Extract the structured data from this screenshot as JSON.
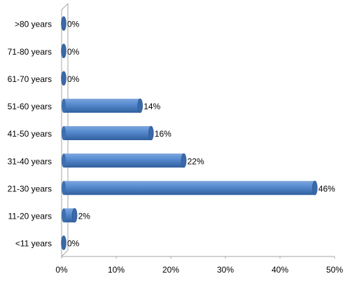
{
  "chart_data": {
    "type": "bar",
    "orientation": "horizontal",
    "categories": [
      ">80 years",
      "71-80 years",
      "61-70 years",
      "51-60 years",
      "41-50 years",
      "31-40 years",
      "21-30 years",
      "11-20 years",
      "<11 years"
    ],
    "values": [
      0,
      0,
      0,
      14,
      16,
      22,
      46,
      2,
      0
    ],
    "value_labels": [
      "0%",
      "0%",
      "0%",
      "14%",
      "16%",
      "22%",
      "46%",
      "2%",
      "0%"
    ],
    "color": "#4f81bd",
    "xlim": [
      0,
      50
    ],
    "xticks": [
      {
        "value": 0,
        "label": "0%"
      },
      {
        "value": 10,
        "label": "10%"
      },
      {
        "value": 20,
        "label": "20%"
      },
      {
        "value": 30,
        "label": "30%"
      },
      {
        "value": 40,
        "label": "40%"
      },
      {
        "value": 50,
        "label": "50%"
      }
    ],
    "grid": false
  }
}
